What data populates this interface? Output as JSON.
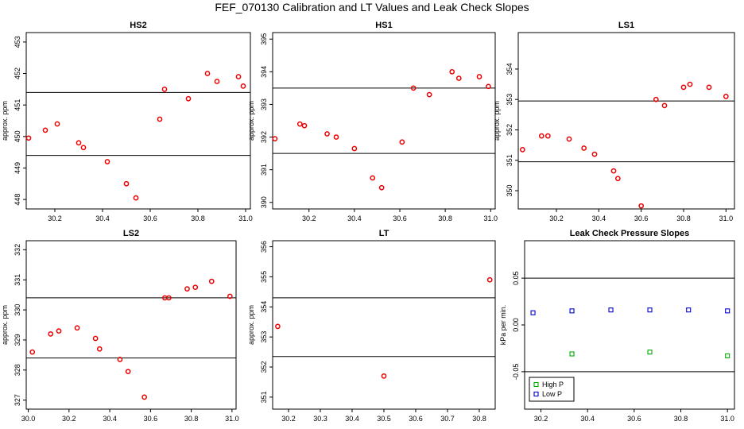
{
  "figure_title": "FEF_070130  Calibration and LT Values and Leak Check Slopes",
  "colors": {
    "red_points": "#ee0000",
    "green_points": "#00aa00",
    "blue_points": "#0000cc",
    "axes": "#000000"
  },
  "chart_data": [
    {
      "title": "HS2",
      "type": "scatter",
      "ylabel": "approx. ppm",
      "xlim": [
        30.08,
        31.02
      ],
      "ylim": [
        447.7,
        453.3
      ],
      "xticks": [
        "30.2",
        "30.4",
        "30.6",
        "30.8",
        "31.0"
      ],
      "xtick_values": [
        30.2,
        30.4,
        30.6,
        30.8,
        31.0
      ],
      "yticks": [
        "448",
        "449",
        "450",
        "451",
        "452",
        "453"
      ],
      "ytick_values": [
        448,
        449,
        450,
        451,
        452,
        453
      ],
      "hlines": [
        449.4,
        451.4
      ],
      "series": [
        {
          "color": "red",
          "marker": "circle",
          "x": [
            30.09,
            30.16,
            30.21,
            30.3,
            30.32,
            30.42,
            30.5,
            30.54,
            30.64,
            30.66,
            30.76,
            30.84,
            30.88,
            30.97,
            30.99
          ],
          "y": [
            449.95,
            450.2,
            450.4,
            449.8,
            449.65,
            449.2,
            448.5,
            448.05,
            450.55,
            451.5,
            451.2,
            452.0,
            451.75,
            451.9,
            451.6
          ]
        }
      ]
    },
    {
      "title": "HS1",
      "type": "scatter",
      "ylabel": "approx. ppm",
      "xlim": [
        30.04,
        31.02
      ],
      "ylim": [
        389.8,
        395.2
      ],
      "xticks": [
        "30.2",
        "30.4",
        "30.6",
        "30.8",
        "31.0"
      ],
      "xtick_values": [
        30.2,
        30.4,
        30.6,
        30.8,
        31.0
      ],
      "yticks": [
        "390",
        "391",
        "392",
        "393",
        "394",
        "395"
      ],
      "ytick_values": [
        390,
        391,
        392,
        393,
        394,
        395
      ],
      "hlines": [
        391.5,
        393.5
      ],
      "series": [
        {
          "color": "red",
          "marker": "circle",
          "x": [
            30.05,
            30.16,
            30.18,
            30.28,
            30.32,
            30.4,
            30.48,
            30.52,
            30.61,
            30.66,
            30.73,
            30.83,
            30.86,
            30.95,
            30.99
          ],
          "y": [
            391.95,
            392.4,
            392.35,
            392.1,
            392.0,
            391.65,
            390.75,
            390.45,
            391.85,
            393.5,
            393.3,
            394.0,
            393.8,
            393.85,
            393.55
          ]
        }
      ]
    },
    {
      "title": "LS1",
      "type": "scatter",
      "ylabel": "approx. ppm",
      "xlim": [
        30.02,
        31.04
      ],
      "ylim": [
        349.4,
        355.2
      ],
      "xticks": [
        "30.2",
        "30.4",
        "30.6",
        "30.8",
        "31.0"
      ],
      "xtick_values": [
        30.2,
        30.4,
        30.6,
        30.8,
        31.0
      ],
      "yticks": [
        "350",
        "351",
        "352",
        "353",
        "354"
      ],
      "ytick_values": [
        350,
        351,
        352,
        353,
        354
      ],
      "hlines": [
        350.95,
        352.95
      ],
      "series": [
        {
          "color": "red",
          "marker": "circle",
          "x": [
            30.04,
            30.13,
            30.16,
            30.26,
            30.33,
            30.38,
            30.47,
            30.49,
            30.6,
            30.67,
            30.71,
            30.8,
            30.83,
            30.92,
            31.0
          ],
          "y": [
            351.35,
            351.8,
            351.8,
            351.7,
            351.4,
            351.2,
            350.65,
            350.4,
            349.5,
            353.0,
            352.8,
            353.4,
            353.5,
            353.4,
            353.1
          ]
        }
      ]
    },
    {
      "title": "LS2",
      "type": "scatter",
      "ylabel": "approx. ppm",
      "xlim": [
        29.99,
        31.02
      ],
      "ylim": [
        326.7,
        332.3
      ],
      "xticks": [
        "30.0",
        "30.2",
        "30.4",
        "30.6",
        "30.8",
        "31.0"
      ],
      "xtick_values": [
        30.0,
        30.2,
        30.4,
        30.6,
        30.8,
        31.0
      ],
      "yticks": [
        "327",
        "328",
        "329",
        "330",
        "331",
        "332"
      ],
      "ytick_values": [
        327,
        328,
        329,
        330,
        331,
        332
      ],
      "hlines": [
        328.4,
        330.4
      ],
      "series": [
        {
          "color": "red",
          "marker": "circle",
          "x": [
            30.02,
            30.11,
            30.15,
            30.24,
            30.33,
            30.35,
            30.45,
            30.49,
            30.57,
            30.67,
            30.69,
            30.78,
            30.82,
            30.9,
            30.99
          ],
          "y": [
            328.6,
            329.2,
            329.3,
            329.4,
            329.05,
            328.7,
            328.35,
            327.95,
            327.1,
            330.4,
            330.4,
            330.7,
            330.75,
            330.95,
            330.45
          ]
        }
      ]
    },
    {
      "title": "LT",
      "type": "scatter",
      "ylabel": "approx. ppm",
      "xlim": [
        30.15,
        30.85
      ],
      "ylim": [
        350.6,
        356.2
      ],
      "xticks": [
        "30.2",
        "30.3",
        "30.4",
        "30.5",
        "30.6",
        "30.7",
        "30.8"
      ],
      "xtick_values": [
        30.2,
        30.3,
        30.4,
        30.5,
        30.6,
        30.7,
        30.8
      ],
      "yticks": [
        "351",
        "352",
        "353",
        "354",
        "355",
        "356"
      ],
      "ytick_values": [
        351,
        352,
        353,
        354,
        355,
        356
      ],
      "hlines": [
        352.35,
        354.3
      ],
      "series": [
        {
          "color": "red",
          "marker": "circle",
          "x": [
            30.166,
            30.5,
            30.833
          ],
          "y": [
            353.35,
            351.7,
            354.9
          ]
        }
      ]
    },
    {
      "title": "Leak Check Pressure Slopes",
      "type": "scatter",
      "ylabel": "kPa per min.",
      "xlim": [
        30.13,
        31.03
      ],
      "ylim": [
        -0.09,
        0.09
      ],
      "xticks": [
        "30.2",
        "30.4",
        "30.6",
        "30.8",
        "31.0"
      ],
      "xtick_values": [
        30.2,
        30.4,
        30.6,
        30.8,
        31.0
      ],
      "yticks": [
        "-0.05",
        "0.00",
        "0.05"
      ],
      "ytick_values": [
        -0.05,
        0.0,
        0.05
      ],
      "hlines": [
        -0.05,
        0.05
      ],
      "legend": {
        "placement": "bottom-left",
        "entries": [
          "High P",
          "Low P"
        ]
      },
      "series": [
        {
          "name": "High P",
          "color": "green",
          "marker": "square",
          "x": [
            30.333,
            30.667,
            31.0
          ],
          "y": [
            -0.031,
            -0.029,
            -0.033
          ]
        },
        {
          "name": "Low P",
          "color": "blue",
          "marker": "square",
          "x": [
            30.166,
            30.333,
            30.5,
            30.667,
            30.833,
            31.0
          ],
          "y": [
            0.013,
            0.015,
            0.016,
            0.016,
            0.016,
            0.015
          ]
        }
      ]
    }
  ]
}
